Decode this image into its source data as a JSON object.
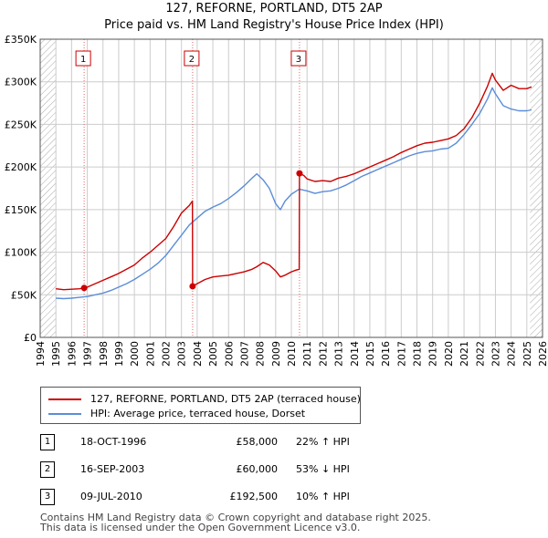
{
  "title_line1": "127, REFORNE, PORTLAND, DT5 2AP",
  "title_line2": "Price paid vs. HM Land Registry's House Price Index (HPI)",
  "colors": {
    "property": "#cc0000",
    "hpi": "#5b8dd9",
    "grid": "#cccccc",
    "background": "#ffffff",
    "hatch": "#aaaaaa"
  },
  "chart_data": {
    "type": "line",
    "xlim": [
      1994,
      2026
    ],
    "ylim": [
      0,
      350000
    ],
    "y_ticks": [
      0,
      50000,
      100000,
      150000,
      200000,
      250000,
      300000,
      350000
    ],
    "y_tick_labels": [
      "£0",
      "£50K",
      "£100K",
      "£150K",
      "£200K",
      "£250K",
      "£300K",
      "£350K"
    ],
    "x_ticks": [
      1994,
      1995,
      1996,
      1997,
      1998,
      1999,
      2000,
      2001,
      2002,
      2003,
      2004,
      2005,
      2006,
      2007,
      2008,
      2009,
      2010,
      2011,
      2012,
      2013,
      2014,
      2015,
      2016,
      2017,
      2018,
      2019,
      2020,
      2021,
      2022,
      2023,
      2024,
      2025,
      2026
    ],
    "grid": true,
    "hatched_regions": [
      [
        1994,
        1995
      ],
      [
        2025.2,
        2026
      ]
    ],
    "series": [
      {
        "name": "127, REFORNE, PORTLAND, DT5 2AP (terraced house)",
        "color": "#cc0000",
        "x": [
          1995.0,
          1995.5,
          1996.0,
          1996.5,
          1996.8,
          1997.0,
          1997.5,
          1998.0,
          1998.5,
          1999.0,
          1999.5,
          2000.0,
          2000.5,
          2001.0,
          2001.5,
          2002.0,
          2002.5,
          2003.0,
          2003.5,
          2003.7,
          2003.71,
          2004.0,
          2004.5,
          2005.0,
          2005.5,
          2006.0,
          2006.5,
          2007.0,
          2007.5,
          2007.8,
          2008.2,
          2008.6,
          2009.0,
          2009.3,
          2009.6,
          2010.0,
          2010.3,
          2010.5,
          2010.52,
          2010.8,
          2011.0,
          2011.5,
          2012.0,
          2012.5,
          2013.0,
          2013.5,
          2014.0,
          2014.5,
          2015.0,
          2015.5,
          2016.0,
          2016.5,
          2017.0,
          2017.5,
          2018.0,
          2018.5,
          2019.0,
          2019.5,
          2020.0,
          2020.5,
          2021.0,
          2021.5,
          2022.0,
          2022.5,
          2022.8,
          2023.0,
          2023.5,
          2024.0,
          2024.5,
          2025.0,
          2025.3
        ],
        "values": [
          57000,
          56000,
          56500,
          57000,
          58000,
          59000,
          63000,
          67000,
          71000,
          75000,
          80000,
          85000,
          93000,
          100000,
          108000,
          116000,
          130000,
          146000,
          155000,
          160000,
          60000,
          63000,
          68000,
          71000,
          72000,
          73000,
          75000,
          77000,
          80000,
          83000,
          88000,
          85000,
          78000,
          71000,
          73000,
          77000,
          79000,
          80000,
          192500,
          190000,
          186000,
          183000,
          184000,
          183000,
          187000,
          189000,
          192000,
          196000,
          200000,
          204000,
          208000,
          212000,
          217000,
          221000,
          225000,
          228000,
          229000,
          231000,
          233000,
          237000,
          245000,
          258000,
          275000,
          295000,
          310000,
          302000,
          290000,
          296000,
          292000,
          292000,
          294000
        ]
      },
      {
        "name": "HPI: Average price, terraced house, Dorset",
        "color": "#5b8dd9",
        "x": [
          1995.0,
          1995.5,
          1996.0,
          1996.5,
          1997.0,
          1997.5,
          1998.0,
          1998.5,
          1999.0,
          1999.5,
          2000.0,
          2000.5,
          2001.0,
          2001.5,
          2002.0,
          2002.5,
          2003.0,
          2003.5,
          2004.0,
          2004.5,
          2005.0,
          2005.5,
          2006.0,
          2006.5,
          2007.0,
          2007.5,
          2007.8,
          2008.2,
          2008.6,
          2009.0,
          2009.3,
          2009.6,
          2010.0,
          2010.5,
          2011.0,
          2011.5,
          2012.0,
          2012.5,
          2013.0,
          2013.5,
          2014.0,
          2014.5,
          2015.0,
          2015.5,
          2016.0,
          2016.5,
          2017.0,
          2017.5,
          2018.0,
          2018.5,
          2019.0,
          2019.5,
          2020.0,
          2020.5,
          2021.0,
          2021.5,
          2022.0,
          2022.5,
          2022.8,
          2023.0,
          2023.5,
          2024.0,
          2024.5,
          2025.0,
          2025.3
        ],
        "values": [
          46000,
          45500,
          46000,
          47000,
          48000,
          50000,
          52000,
          55000,
          59000,
          63000,
          68000,
          74000,
          80000,
          87000,
          96000,
          108000,
          120000,
          132000,
          140000,
          148000,
          153000,
          157000,
          163000,
          170000,
          178000,
          187000,
          192000,
          185000,
          175000,
          157000,
          150000,
          160000,
          168000,
          174000,
          172000,
          169000,
          171000,
          172000,
          175000,
          179000,
          184000,
          189000,
          193000,
          197000,
          201000,
          205000,
          209000,
          213000,
          216000,
          218000,
          219000,
          221000,
          222000,
          228000,
          238000,
          250000,
          263000,
          280000,
          293000,
          286000,
          272000,
          268000,
          266000,
          266000,
          267000
        ]
      }
    ],
    "sales": [
      {
        "label": "1",
        "x": 1996.8,
        "value": 58000
      },
      {
        "label": "2",
        "x": 2003.71,
        "value": 60000
      },
      {
        "label": "3",
        "x": 2010.52,
        "value": 192500
      }
    ]
  },
  "legend": {
    "property_label": "127, REFORNE, PORTLAND, DT5 2AP (terraced house)",
    "hpi_label": "HPI: Average price, terraced house, Dorset"
  },
  "transactions": [
    {
      "num": "1",
      "date": "18-OCT-1996",
      "price": "£58,000",
      "hpi": "22% ↑ HPI"
    },
    {
      "num": "2",
      "date": "16-SEP-2003",
      "price": "£60,000",
      "hpi": "53% ↓ HPI"
    },
    {
      "num": "3",
      "date": "09-JUL-2010",
      "price": "£192,500",
      "hpi": "10% ↑ HPI"
    }
  ],
  "footer_line1": "Contains HM Land Registry data © Crown copyright and database right 2025.",
  "footer_line2": "This data is licensed under the Open Government Licence v3.0."
}
